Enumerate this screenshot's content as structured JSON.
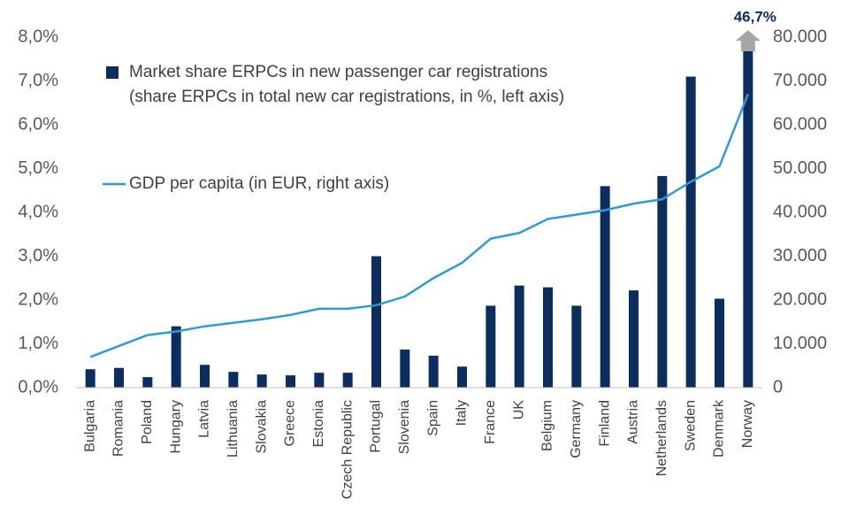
{
  "chart_data": {
    "type": "bar_line",
    "categories": [
      "Bulgaria",
      "Romania",
      "Poland",
      "Hungary",
      "Latvia",
      "Lithuania",
      "Slovakia",
      "Greece",
      "Estonia",
      "Czech Republic",
      "Portugal",
      "Slovenia",
      "Spain",
      "Italy",
      "France",
      "UK",
      "Belgium",
      "Germany",
      "Finland",
      "Austria",
      "Netherlands",
      "Sweden",
      "Denmark",
      "Norway"
    ],
    "series": [
      {
        "name": "Market share ERPCs in new passenger car registrations",
        "description": "(share ERPCs in total new car registrations, in %, left axis)",
        "color": "#0b2e5e",
        "kind": "bar",
        "values": [
          0.42,
          0.45,
          0.24,
          1.4,
          0.52,
          0.36,
          0.3,
          0.28,
          0.34,
          0.34,
          3.0,
          0.87,
          0.73,
          0.48,
          1.87,
          2.33,
          2.29,
          1.87,
          4.6,
          2.22,
          4.83,
          7.1,
          2.03,
          46.7
        ],
        "value_labels": [
          null,
          null,
          null,
          null,
          null,
          null,
          null,
          null,
          null,
          null,
          null,
          null,
          null,
          null,
          null,
          null,
          null,
          null,
          null,
          null,
          null,
          null,
          null,
          "46,7%"
        ]
      },
      {
        "name": "GDP per capita (in EUR, right axis)",
        "color": "#2e9bd1",
        "kind": "line",
        "axis": "y2",
        "values": [
          7000,
          9500,
          12000,
          12800,
          14000,
          14800,
          15600,
          16600,
          18000,
          18000,
          18800,
          20800,
          25000,
          28500,
          34000,
          35300,
          38500,
          39500,
          40500,
          42000,
          43000,
          47000,
          50500,
          67000
        ]
      }
    ],
    "ylim": [
      0,
      8
    ],
    "yticks": [
      {
        "value": 0,
        "label": "0,0%"
      },
      {
        "value": 1,
        "label": "1,0%"
      },
      {
        "value": 2,
        "label": "2,0%"
      },
      {
        "value": 3,
        "label": "3,0%"
      },
      {
        "value": 4,
        "label": "4,0%"
      },
      {
        "value": 5,
        "label": "5,0%"
      },
      {
        "value": 6,
        "label": "6,0%"
      },
      {
        "value": 7,
        "label": "7,0%"
      },
      {
        "value": 8,
        "label": "8,0%"
      }
    ],
    "y2lim": [
      0,
      80000
    ],
    "y2ticks": [
      0,
      {
        "value": 10000,
        "label": "10.000"
      },
      {
        "value": 20000,
        "label": "20.000"
      },
      {
        "value": 30000,
        "label": "30.000"
      },
      {
        "value": 40000,
        "label": "40.000"
      },
      {
        "value": 50000,
        "label": "50.000"
      },
      {
        "value": 60000,
        "label": "60.000"
      },
      {
        "value": 70000,
        "label": "70.000"
      },
      {
        "value": 80000,
        "label": "80.000"
      }
    ],
    "legend": "upper left"
  }
}
